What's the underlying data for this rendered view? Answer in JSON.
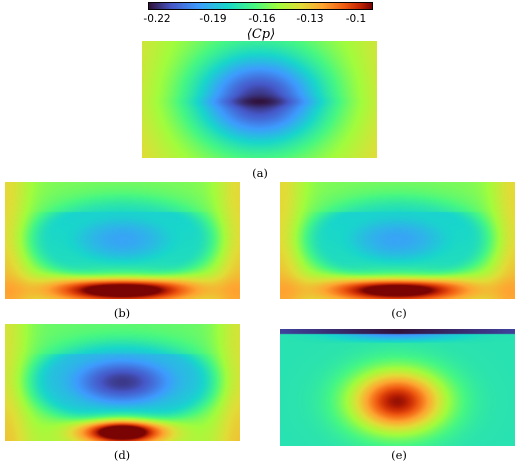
{
  "colorbar": {
    "label": "⟨Cp⟩",
    "ticks": [
      "-0.22",
      "-0.19",
      "-0.16",
      "-0.13",
      "-0.1"
    ],
    "tick_values": [
      -0.22,
      -0.19,
      -0.16,
      -0.13,
      -0.1
    ],
    "range": [
      -0.235,
      -0.09
    ],
    "colormap": "turbo"
  },
  "chart_data": [
    {
      "type": "heatmap",
      "caption": "(a)",
      "clim": [
        -0.235,
        -0.09
      ],
      "field": {
        "kind": "center-low",
        "base": -0.158,
        "depth": 0.07
      }
    },
    {
      "type": "heatmap",
      "caption": "(b)",
      "clim": [
        -0.235,
        -0.09
      ],
      "field": {
        "kind": "bowl",
        "top": -0.155,
        "min": -0.205,
        "bottom": -0.095
      }
    },
    {
      "type": "heatmap",
      "caption": "(c)",
      "clim": [
        -0.235,
        -0.09
      ],
      "field": {
        "kind": "bowl",
        "top": -0.155,
        "min": -0.205,
        "bottom": -0.098
      }
    },
    {
      "type": "heatmap",
      "caption": "(d)",
      "clim": [
        -0.235,
        -0.09
      ],
      "field": {
        "kind": "bowl-strong",
        "top": -0.16,
        "min": -0.232,
        "bottom": -0.093
      }
    },
    {
      "type": "heatmap",
      "caption": "(e)",
      "clim": [
        -0.235,
        -0.09
      ],
      "field": {
        "kind": "center-high",
        "base": -0.178,
        "peak": -0.093,
        "top_strip": -0.235
      }
    }
  ]
}
